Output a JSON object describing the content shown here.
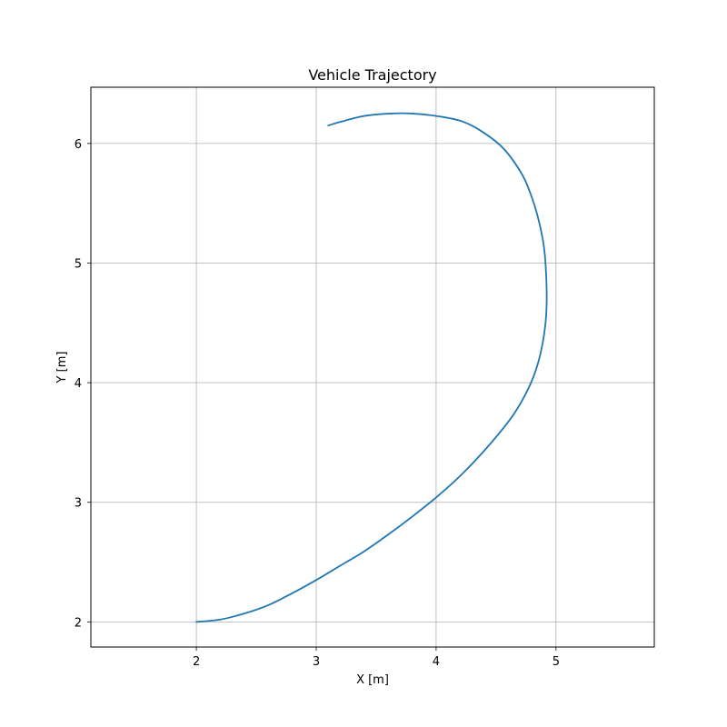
{
  "chart_data": {
    "type": "line",
    "title": "Vehicle Trajectory",
    "xlabel": "X [m]",
    "ylabel": "Y [m]",
    "xlim": [
      1.12,
      5.82
    ],
    "ylim": [
      1.79,
      6.47
    ],
    "xticks": [
      2,
      3,
      4,
      5
    ],
    "yticks": [
      2,
      3,
      4,
      5,
      6
    ],
    "grid": true,
    "series": [
      {
        "color": "#1f77b4",
        "x": [
          2.0,
          2.2,
          2.4,
          2.6,
          2.8,
          3.0,
          3.2,
          3.4,
          3.6,
          3.8,
          4.0,
          4.2,
          4.4,
          4.6,
          4.7,
          4.8,
          4.86,
          4.9,
          4.92,
          4.92,
          4.9,
          4.85,
          4.78,
          4.7,
          4.55,
          4.35,
          4.2,
          4.0,
          3.8,
          3.62,
          3.4,
          3.2,
          3.1
        ],
        "y": [
          2.0,
          2.02,
          2.07,
          2.14,
          2.24,
          2.35,
          2.47,
          2.59,
          2.73,
          2.88,
          3.04,
          3.22,
          3.43,
          3.67,
          3.82,
          4.02,
          4.2,
          4.4,
          4.6,
          4.85,
          5.13,
          5.38,
          5.6,
          5.77,
          5.97,
          6.12,
          6.19,
          6.23,
          6.25,
          6.25,
          6.23,
          6.18,
          6.15
        ]
      }
    ]
  }
}
